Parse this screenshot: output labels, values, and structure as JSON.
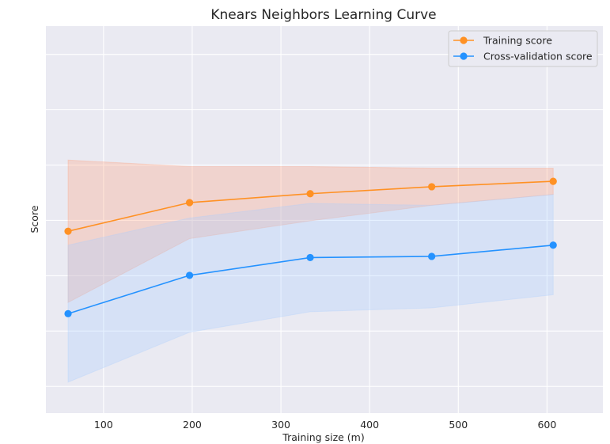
{
  "chart_data": {
    "type": "line",
    "title": "Knears Neighbors Learning Curve",
    "xlabel": "Training size (m)",
    "ylabel": "Score",
    "x": [
      60,
      197,
      333,
      470,
      607
    ],
    "xlim": [
      35,
      663
    ],
    "ylim": [
      0,
      1
    ],
    "x_ticks": [
      100,
      200,
      300,
      400,
      500,
      600
    ],
    "x_tick_labels": [
      "100",
      "200",
      "300",
      "400",
      "500",
      "600"
    ],
    "y_grid_values": [
      0.069,
      0.212,
      0.355,
      0.498,
      0.641,
      0.784,
      0.927
    ],
    "y_tick_labels_visible": false,
    "grid": true,
    "background": "#eaeaf2",
    "legend": {
      "placement": "top-right"
    },
    "series": [
      {
        "name": "Training score",
        "color": "#ff9124",
        "band_color": "#ffa07a",
        "values": [
          0.47,
          0.544,
          0.567,
          0.585,
          0.599
        ],
        "upper": [
          0.654,
          0.637,
          0.637,
          0.633,
          0.633
        ],
        "lower": [
          0.286,
          0.451,
          0.497,
          0.537,
          0.565
        ]
      },
      {
        "name": "Cross-validation score",
        "color": "#2492ff",
        "band_color": "#aaccff",
        "values": [
          0.257,
          0.356,
          0.402,
          0.405,
          0.434
        ],
        "upper": [
          0.434,
          0.504,
          0.542,
          0.537,
          0.565
        ],
        "lower": [
          0.08,
          0.209,
          0.262,
          0.272,
          0.306
        ]
      }
    ]
  }
}
